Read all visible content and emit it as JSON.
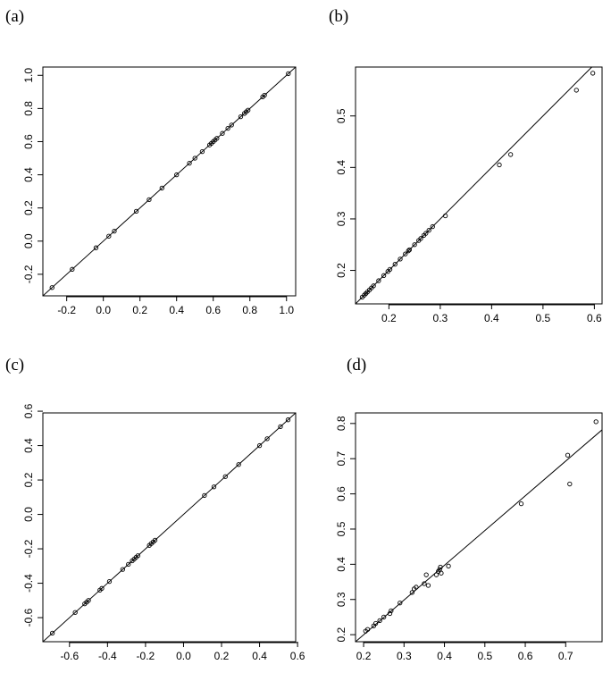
{
  "panel_labels": [
    "(a)",
    "(b)",
    "(c)",
    "(d)"
  ],
  "chart_data": [
    {
      "type": "scatter",
      "panel": "(a)",
      "xlim": [
        -0.33,
        1.05
      ],
      "ylim": [
        -0.33,
        1.05
      ],
      "xticks": [
        -0.2,
        0.0,
        0.2,
        0.4,
        0.6,
        0.8,
        1.0
      ],
      "yticks": [
        -0.2,
        0.0,
        0.2,
        0.4,
        0.6,
        0.8,
        1.0
      ],
      "xtick_labels": [
        "-0.2",
        "0.0",
        "0.2",
        "0.4",
        "0.6",
        "0.8",
        "1.0"
      ],
      "ytick_labels": [
        "-0.2",
        "0.0",
        "0.2",
        "0.4",
        "0.6",
        "0.8",
        "1.0"
      ],
      "reference_line": "y = x",
      "x": [
        -0.28,
        -0.17,
        -0.04,
        0.03,
        0.06,
        0.18,
        0.25,
        0.32,
        0.4,
        0.47,
        0.5,
        0.54,
        0.58,
        0.59,
        0.6,
        0.61,
        0.62,
        0.65,
        0.68,
        0.7,
        0.75,
        0.77,
        0.78,
        0.79,
        0.87,
        0.88,
        1.01
      ],
      "y": [
        -0.28,
        -0.17,
        -0.04,
        0.03,
        0.06,
        0.18,
        0.25,
        0.32,
        0.4,
        0.47,
        0.5,
        0.54,
        0.58,
        0.59,
        0.6,
        0.61,
        0.62,
        0.65,
        0.68,
        0.7,
        0.75,
        0.77,
        0.78,
        0.79,
        0.87,
        0.88,
        1.01
      ]
    },
    {
      "type": "scatter",
      "panel": "(b)",
      "xlim": [
        0.135,
        0.615
      ],
      "ylim": [
        0.135,
        0.595
      ],
      "xticks": [
        0.2,
        0.3,
        0.4,
        0.5,
        0.6
      ],
      "yticks": [
        0.2,
        0.3,
        0.4,
        0.5
      ],
      "xtick_labels": [
        "0.2",
        "0.3",
        "0.4",
        "0.5",
        "0.6"
      ],
      "ytick_labels": [
        "0.2",
        "0.3",
        "0.4",
        "0.5"
      ],
      "reference_line": "y = x",
      "x": [
        0.148,
        0.152,
        0.155,
        0.158,
        0.162,
        0.166,
        0.17,
        0.18,
        0.19,
        0.198,
        0.202,
        0.212,
        0.222,
        0.232,
        0.238,
        0.24,
        0.25,
        0.258,
        0.262,
        0.268,
        0.272,
        0.278,
        0.285,
        0.31,
        0.415,
        0.437,
        0.565,
        0.597
      ],
      "y": [
        0.148,
        0.152,
        0.155,
        0.158,
        0.162,
        0.166,
        0.17,
        0.18,
        0.19,
        0.198,
        0.202,
        0.212,
        0.222,
        0.232,
        0.238,
        0.24,
        0.25,
        0.258,
        0.262,
        0.268,
        0.272,
        0.278,
        0.285,
        0.306,
        0.405,
        0.425,
        0.55,
        0.583
      ]
    },
    {
      "type": "scatter",
      "panel": "(c)",
      "xlim": [
        -0.74,
        0.59
      ],
      "ylim": [
        -0.74,
        0.59
      ],
      "xticks": [
        -0.6,
        -0.4,
        -0.2,
        0.0,
        0.2,
        0.4,
        0.6
      ],
      "yticks": [
        -0.6,
        -0.4,
        -0.2,
        0.0,
        0.2,
        0.4,
        0.6
      ],
      "xtick_labels": [
        "-0.6",
        "-0.4",
        "-0.2",
        "0.0",
        "0.2",
        "0.4",
        "0.6"
      ],
      "ytick_labels": [
        "-0.6",
        "-0.4",
        "-0.2",
        "0.0",
        "0.2",
        "0.4",
        "0.6"
      ],
      "reference_line": "y = x",
      "x": [
        -0.69,
        -0.57,
        -0.52,
        -0.51,
        -0.5,
        -0.44,
        -0.43,
        -0.39,
        -0.32,
        -0.29,
        -0.27,
        -0.26,
        -0.25,
        -0.24,
        -0.18,
        -0.17,
        -0.16,
        -0.15,
        0.11,
        0.16,
        0.22,
        0.29,
        0.4,
        0.44,
        0.51,
        0.55
      ],
      "y": [
        -0.69,
        -0.57,
        -0.52,
        -0.51,
        -0.5,
        -0.44,
        -0.43,
        -0.39,
        -0.32,
        -0.29,
        -0.27,
        -0.26,
        -0.25,
        -0.24,
        -0.18,
        -0.17,
        -0.16,
        -0.15,
        0.11,
        0.16,
        0.22,
        0.29,
        0.4,
        0.44,
        0.51,
        0.55
      ]
    },
    {
      "type": "scatter",
      "panel": "(d)",
      "xlim": [
        0.18,
        0.79
      ],
      "ylim": [
        0.18,
        0.83
      ],
      "xticks": [
        0.2,
        0.3,
        0.4,
        0.5,
        0.6,
        0.7
      ],
      "yticks": [
        0.2,
        0.3,
        0.4,
        0.5,
        0.6,
        0.7,
        0.8
      ],
      "xtick_labels": [
        "0.2",
        "0.3",
        "0.4",
        "0.5",
        "0.6",
        "0.7"
      ],
      "ytick_labels": [
        "0.2",
        "0.3",
        "0.4",
        "0.5",
        "0.6",
        "0.7",
        "0.8"
      ],
      "reference_line": "fitted line",
      "line_x": [
        0.18,
        0.79
      ],
      "line_y": [
        0.18,
        0.782
      ],
      "x": [
        0.205,
        0.21,
        0.225,
        0.23,
        0.24,
        0.25,
        0.265,
        0.268,
        0.29,
        0.32,
        0.325,
        0.33,
        0.35,
        0.355,
        0.36,
        0.38,
        0.385,
        0.388,
        0.39,
        0.392,
        0.41,
        0.59,
        0.705,
        0.71,
        0.775
      ],
      "y": [
        0.21,
        0.215,
        0.225,
        0.232,
        0.24,
        0.25,
        0.26,
        0.268,
        0.29,
        0.32,
        0.33,
        0.335,
        0.345,
        0.37,
        0.34,
        0.37,
        0.38,
        0.385,
        0.392,
        0.375,
        0.395,
        0.572,
        0.71,
        0.628,
        0.805
      ]
    }
  ]
}
